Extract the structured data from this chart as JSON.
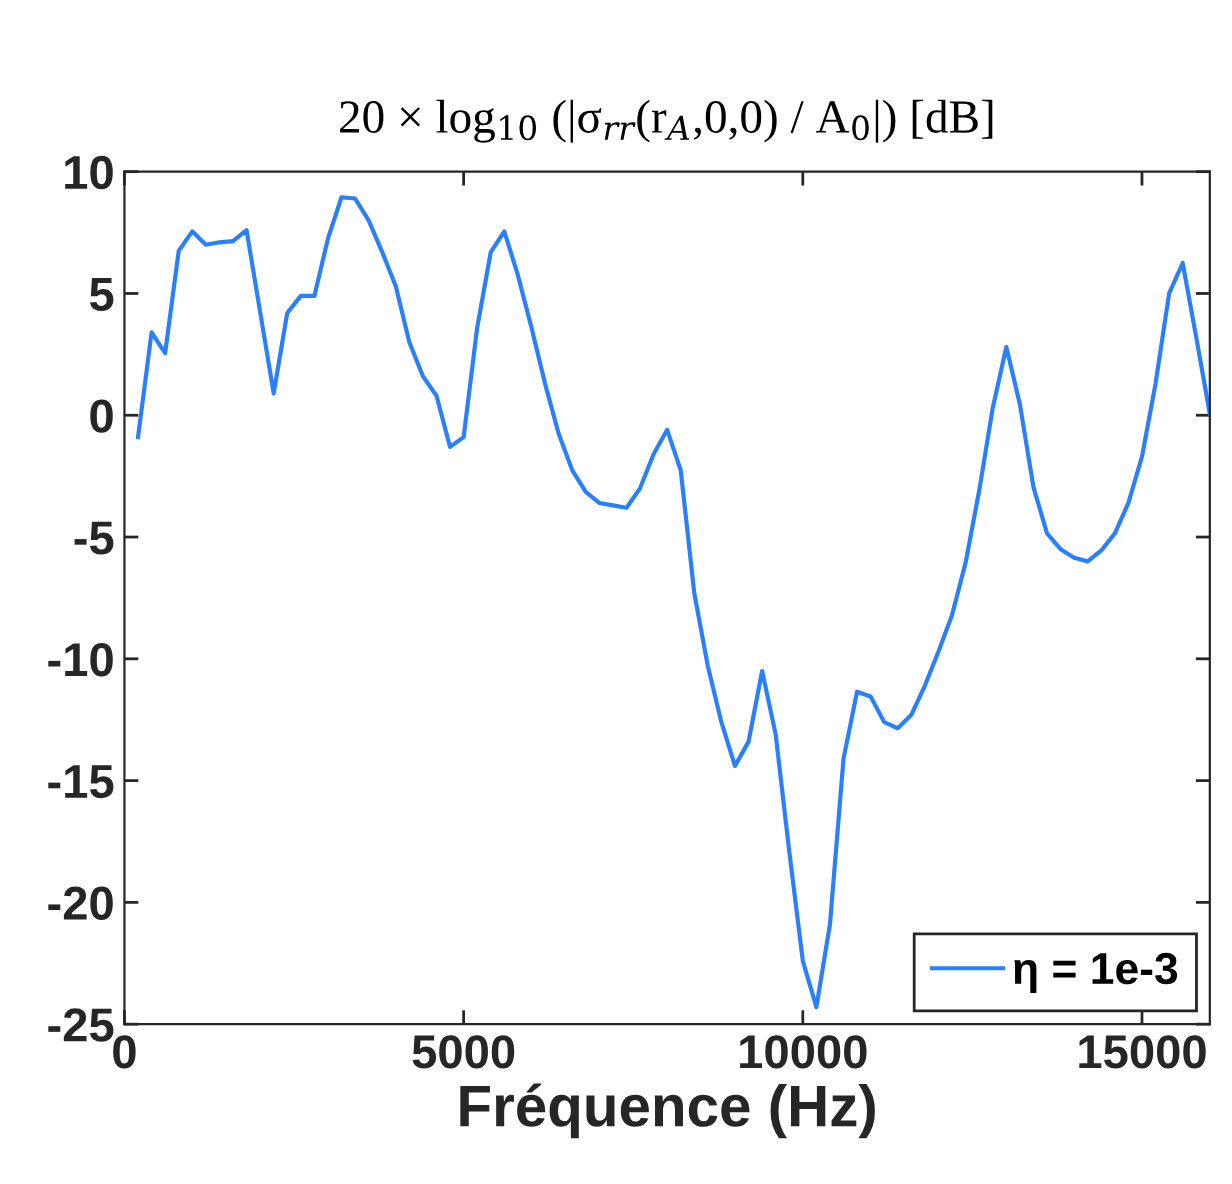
{
  "chart_data": {
    "type": "line",
    "title": "20 × log$_{10}$ (|σ$_{rr}$(r$_{A}$,0,0) / A$_{0}$|) [dB]",
    "xlabel": "Fréquence (Hz)",
    "x": [
      200,
      400,
      600,
      800,
      1000,
      1200,
      1400,
      1600,
      1800,
      2000,
      2200,
      2400,
      2600,
      2800,
      3000,
      3200,
      3400,
      3600,
      3800,
      4000,
      4200,
      4400,
      4600,
      4800,
      5000,
      5200,
      5400,
      5600,
      5800,
      6000,
      6200,
      6400,
      6600,
      6800,
      7000,
      7200,
      7400,
      7600,
      7800,
      8000,
      8200,
      8400,
      8600,
      8800,
      9000,
      9200,
      9400,
      9600,
      9800,
      10000,
      10200,
      10400,
      10600,
      10800,
      11000,
      11200,
      11400,
      11600,
      11800,
      12000,
      12200,
      12400,
      12600,
      12800,
      13000,
      13200,
      13400,
      13600,
      13800,
      14000,
      14200,
      14400,
      14600,
      14800,
      15000,
      15200,
      15400,
      15600,
      15800,
      16000
    ],
    "series": [
      {
        "name": "η = 1e-3",
        "color": "#2a7fff",
        "values": [
          -0.9,
          3.4,
          2.55,
          6.75,
          7.55,
          7.0,
          7.1,
          7.15,
          7.6,
          4.25,
          0.9,
          4.2,
          4.9,
          4.9,
          7.25,
          8.95,
          8.9,
          8.0,
          6.7,
          5.3,
          3.0,
          1.6,
          0.8,
          -1.3,
          -0.9,
          3.6,
          6.7,
          7.55,
          5.75,
          3.6,
          1.3,
          -0.75,
          -2.25,
          -3.15,
          -3.6,
          -3.7,
          -3.8,
          -3.0,
          -1.6,
          -0.6,
          -2.25,
          -7.3,
          -10.3,
          -12.6,
          -14.4,
          -13.4,
          -10.5,
          -13.1,
          -17.9,
          -22.4,
          -24.3,
          -20.9,
          -14.1,
          -11.35,
          -11.55,
          -12.6,
          -12.85,
          -12.3,
          -11.1,
          -9.7,
          -8.2,
          -6.05,
          -3.1,
          0.3,
          2.8,
          0.45,
          -2.95,
          -4.85,
          -5.5,
          -5.85,
          -6.0,
          -5.55,
          -4.85,
          -3.6,
          -1.7,
          1.3,
          5.0,
          6.25,
          3.2,
          0.05
        ]
      }
    ],
    "xlim": [
      0,
      16000
    ],
    "xticks": [
      0,
      5000,
      10000,
      15000
    ],
    "ylim": [
      -25,
      10
    ],
    "yticks": [
      -25,
      -20,
      -15,
      -10,
      -5,
      0,
      5,
      10
    ],
    "grid": false,
    "legend": "bottom right",
    "marker": "none",
    "line_style": "solid"
  }
}
